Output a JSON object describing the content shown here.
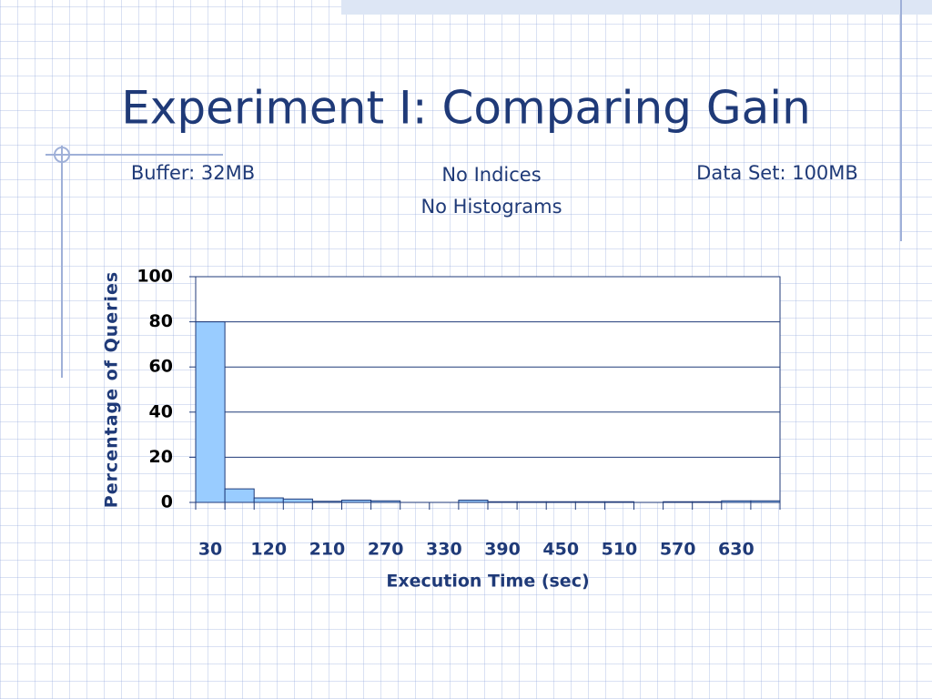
{
  "chart_data": {
    "type": "bar",
    "title": "Experiment I: Comparing Gain",
    "annotations": [
      "Buffer: 32MB",
      "No Indices",
      "No Histograms",
      "Data Set: 100MB"
    ],
    "categories": [
      "30",
      null,
      "120",
      null,
      "210",
      null,
      "270",
      null,
      "330",
      null,
      "390",
      null,
      "450",
      null,
      "510",
      null,
      "570",
      null,
      "630",
      null
    ],
    "values": [
      80,
      6,
      2,
      1.5,
      0.5,
      1,
      0.7,
      0,
      0,
      1,
      0.3,
      0.3,
      0.3,
      0.3,
      0.3,
      0,
      0.3,
      0.3,
      0.7,
      0.7
    ],
    "color": "#99ccff",
    "x_label": "Execution Time (sec)",
    "y_label": "Percentage of Queries",
    "ylim": [
      0,
      100
    ],
    "yticks": [
      0,
      20,
      40,
      60,
      80,
      100
    ],
    "grid": true
  }
}
